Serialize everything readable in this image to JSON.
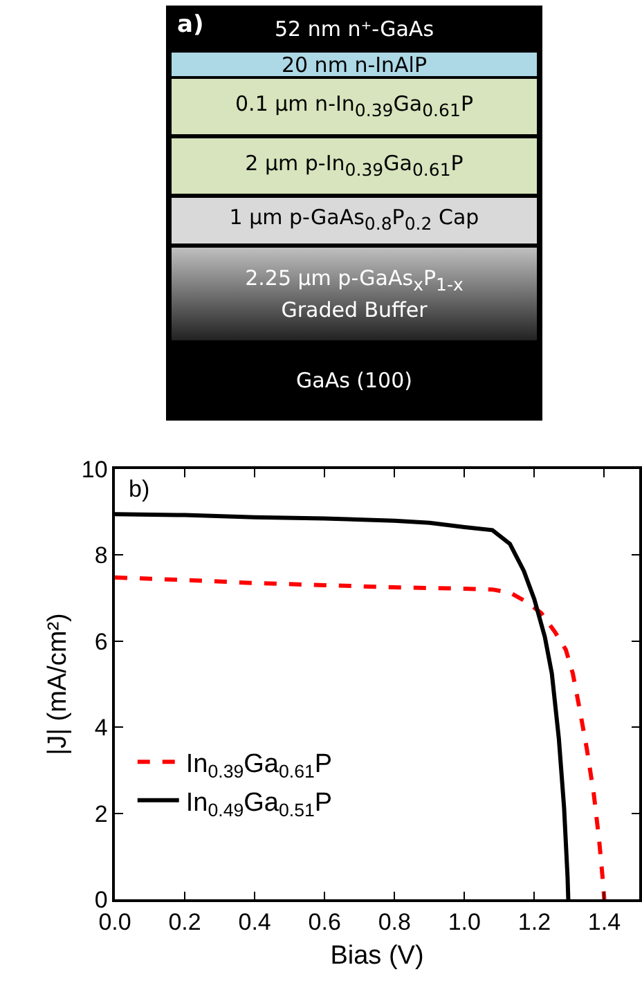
{
  "chart_data": [
    {
      "type": "other",
      "annotations": [
        "a)",
        "52 nm n⁺-GaAs",
        "20 nm n-InAlP",
        "0.1 µm n-In$_{0.39}$Ga$_{0.61}$P",
        "2 µm p-In$_{0.39}$Ga$_{0.61}$P",
        "1 µm p-GaAs$_{0.8}$P$_{0.2}$ Cap",
        "2.25 µm p-GaAs$_{x}$P$_{1-x}$",
        "Graded Buffer",
        "GaAs (100)"
      ]
    },
    {
      "type": "line",
      "xlabel": "Bias (V)",
      "ylabel": "|J| (mA/cm²)",
      "annotations": [
        "b)"
      ],
      "xlim": [
        0,
        1.5
      ],
      "xticks": [
        {
          "value": 0,
          "label": "0.0"
        },
        0.2,
        0.4,
        0.6,
        0.8,
        {
          "value": 1,
          "label": "1.0"
        },
        1.2,
        1.4
      ],
      "ylim": [
        0,
        10
      ],
      "yticks": [
        0,
        2,
        4,
        6,
        8,
        10
      ],
      "legend": "bottom left",
      "grid": false,
      "marker": "none",
      "series": [
        {
          "name": "In$_{0.39}$Ga$_{0.61}$P",
          "color": "#ff0000",
          "line_style": "dashed",
          "x": [
            0,
            0.2,
            0.4,
            0.6,
            0.8,
            1.0,
            1.08,
            1.13,
            1.18,
            1.22,
            1.26,
            1.29,
            1.31,
            1.33,
            1.35,
            1.37,
            1.385,
            1.395,
            1.4
          ],
          "values": [
            7.48,
            7.42,
            7.35,
            7.3,
            7.25,
            7.22,
            7.2,
            7.13,
            6.9,
            6.65,
            6.2,
            5.8,
            5.25,
            4.4,
            3.5,
            2.45,
            1.4,
            0.52,
            0
          ]
        },
        {
          "name": "In$_{0.49}$Ga$_{0.51}$P",
          "color": "#000000",
          "line_style": "solid",
          "x": [
            0,
            0.2,
            0.4,
            0.6,
            0.8,
            0.9,
            1.0,
            1.08,
            1.13,
            1.17,
            1.2,
            1.23,
            1.25,
            1.27,
            1.285,
            1.295,
            1.297
          ],
          "values": [
            8.95,
            8.93,
            8.88,
            8.85,
            8.8,
            8.75,
            8.65,
            8.58,
            8.26,
            7.63,
            6.97,
            6.1,
            5.25,
            3.74,
            2.13,
            0.52,
            0
          ]
        }
      ]
    }
  ]
}
